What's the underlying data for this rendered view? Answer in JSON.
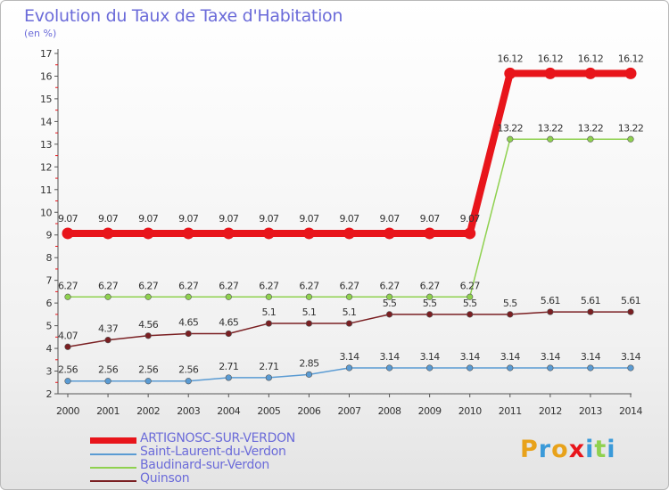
{
  "chart_data": {
    "type": "line",
    "title": "Evolution du Taux de Taxe d'Habitation",
    "subtitle": "(en %)",
    "ylim": [
      2,
      17
    ],
    "yticks": [
      2,
      3,
      4,
      5,
      6,
      7,
      8,
      9,
      10,
      11,
      12,
      13,
      14,
      15,
      16,
      17
    ],
    "categories": [
      "2000",
      "2001",
      "2002",
      "2003",
      "2004",
      "2005",
      "2006",
      "2007",
      "2008",
      "2009",
      "2010",
      "2011",
      "2012",
      "2013",
      "2014"
    ],
    "grid": false,
    "legend": "bottom-left",
    "series": [
      {
        "name": "ARTIGNOSC-SUR-VERDON",
        "color": "#e8151b",
        "bold": true,
        "values": [
          9.07,
          9.07,
          9.07,
          9.07,
          9.07,
          9.07,
          9.07,
          9.07,
          9.07,
          9.07,
          9.07,
          16.12,
          16.12,
          16.12,
          16.12
        ],
        "labels": [
          "9.07",
          "9.07",
          "9.07",
          "9.07",
          "9.07",
          "9.07",
          "9.07",
          "9.07",
          "9.07",
          "9.07",
          "9.07",
          "16.12",
          "16.12",
          "16.12",
          "16.12"
        ]
      },
      {
        "name": "Saint-Laurent-du-Verdon",
        "color": "#5a9bd3",
        "bold": false,
        "values": [
          2.56,
          2.56,
          2.56,
          2.56,
          2.71,
          2.71,
          2.85,
          3.14,
          3.14,
          3.14,
          3.14,
          3.14,
          3.14,
          3.14,
          3.14
        ],
        "labels": [
          "2.56",
          "2.56",
          "2.56",
          "2.56",
          "2.71",
          "2.71",
          "2.85",
          "3.14",
          "3.14",
          "3.14",
          "3.14",
          "3.14",
          "3.14",
          "3.14",
          "3.14"
        ]
      },
      {
        "name": "Baudinard-sur-Verdon",
        "color": "#8fd14f",
        "bold": false,
        "values": [
          6.27,
          6.27,
          6.27,
          6.27,
          6.27,
          6.27,
          6.27,
          6.27,
          6.27,
          6.27,
          6.27,
          13.22,
          13.22,
          13.22,
          13.22
        ],
        "labels": [
          "6.27",
          "6.27",
          "6.27",
          "6.27",
          "6.27",
          "6.27",
          "6.27",
          "6.27",
          "6.27",
          "6.27",
          "6.27",
          "13.22",
          "13.22",
          "13.22",
          "13.22"
        ]
      },
      {
        "name": "Quinson",
        "color": "#7a1f22",
        "bold": false,
        "values": [
          4.07,
          4.37,
          4.56,
          4.65,
          4.65,
          5.1,
          5.1,
          5.1,
          5.5,
          5.5,
          5.5,
          5.5,
          5.61,
          5.61,
          5.61
        ],
        "labels": [
          "4.07",
          "4.37",
          "4.56",
          "4.65",
          "4.65",
          "5.1",
          "5.1",
          "5.1",
          "5.5",
          "5.5",
          "5.5",
          "5.5",
          "5.61",
          "5.61",
          "5.61"
        ]
      }
    ]
  },
  "logo": {
    "text": "Proxiti",
    "colors": [
      "#e8a21a",
      "#3a9ad9",
      "#e8151b",
      "#8fd14f"
    ]
  }
}
